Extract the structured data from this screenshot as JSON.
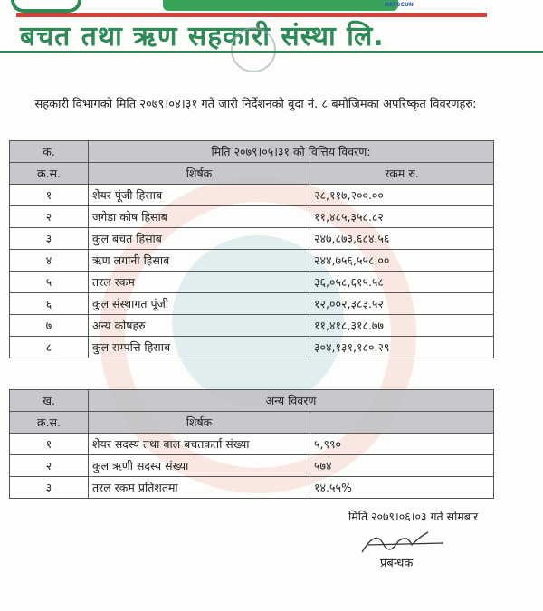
{
  "letterhead": {
    "org_name": "बचत तथा ऋण सहकारी संस्था लि.",
    "affiliation_logo": "NEFSCUN",
    "colors": {
      "green": "#2e8b57",
      "red": "#d2413a"
    }
  },
  "intro": "सहकारी विभागको मिति २०७९।०४।३१ गते जारी निर्देशनको बुदा नं. ८ बमोजिमका अपरिष्कृत विवरणहरु:",
  "table1": {
    "section": "क.",
    "title": "मिति २०७९।०५।३१ को वित्तिय विवरण:",
    "headers": [
      "क्र.स.",
      "शिर्षक",
      "रकम रु."
    ],
    "rows": [
      [
        "१",
        "शेयर पूंजी हिसाब",
        "२८,११७,२००.००"
      ],
      [
        "२",
        "जगेडा कोष हिसाब",
        "११,४८५,३५८.८२"
      ],
      [
        "३",
        "कुल बचत हिसाब",
        "२४७,८७३,६८४.५६"
      ],
      [
        "४",
        "ऋण लगानी हिसाब",
        "२४४,७५६,५५८.००"
      ],
      [
        "५",
        "तरल रकम",
        "३६,०५८,६१५.५८"
      ],
      [
        "६",
        "कुल संस्थागत पूंजी",
        "१२,००२,३८३.५२"
      ],
      [
        "७",
        "अन्य कोषहरु",
        "११,४१८,३१८.७७"
      ],
      [
        "८",
        "कुल सम्पत्ति हिसाब",
        "३०४,१३१,१८०.२९"
      ]
    ]
  },
  "table2": {
    "section": "ख.",
    "title": "अन्य विवरण",
    "headers": [
      "क्र.स.",
      "शिर्षक",
      ""
    ],
    "rows": [
      [
        "१",
        "शेयर सदस्य तथा बाल बचतकर्ता संख्या",
        "५,९९०"
      ],
      [
        "२",
        "कुल ऋणी सदस्य संख्या",
        "५७४"
      ],
      [
        "३",
        "तरल रकम प्रतिशतमा",
        "१४.५५%"
      ]
    ]
  },
  "footer": {
    "date": "मिति २०७९।०६।०३ गते सोमबार",
    "signatory": "प्रबन्धक"
  }
}
